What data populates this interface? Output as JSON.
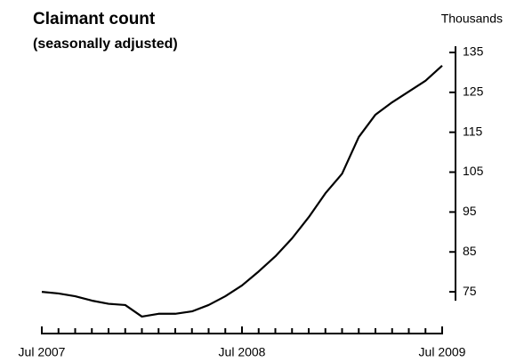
{
  "chart_data": {
    "type": "line",
    "title": "Claimant count",
    "subtitle": "(seasonally adjusted)",
    "y_axis_label": "Thousands",
    "categories": [
      "Jul 2007",
      null,
      null,
      null,
      null,
      null,
      null,
      null,
      null,
      null,
      null,
      null,
      "Jul 2008",
      null,
      null,
      null,
      null,
      null,
      null,
      null,
      null,
      null,
      null,
      null,
      "Jul 2009"
    ],
    "series": [
      {
        "name": "Claimant count",
        "color": "#000000",
        "values": [
          75.0,
          74.6,
          73.9,
          72.8,
          72.0,
          71.7,
          68.8,
          69.5,
          69.5,
          70.1,
          71.7,
          73.9,
          76.6,
          80.1,
          83.9,
          88.4,
          93.7,
          99.7,
          104.6,
          113.8,
          119.4,
          122.5,
          125.2,
          127.9,
          131.7
        ]
      }
    ],
    "ylim": [
      67,
      137
    ],
    "yticks": [
      75,
      85,
      95,
      105,
      115,
      125,
      135
    ],
    "y_axis_side": "right"
  }
}
